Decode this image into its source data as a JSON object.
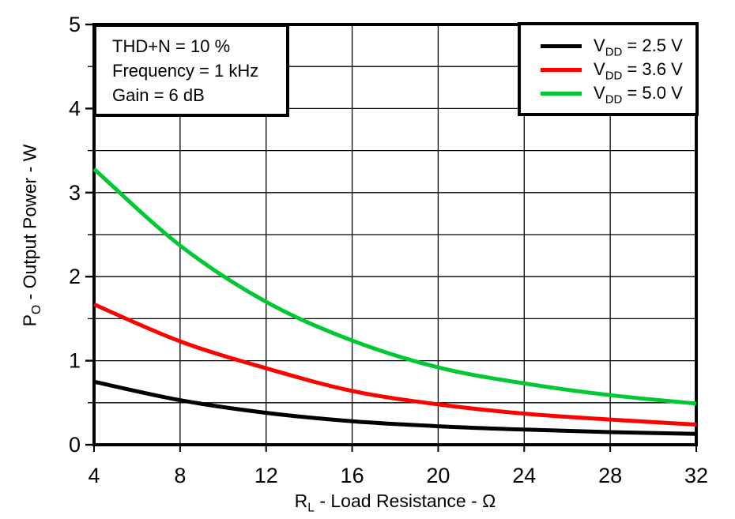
{
  "chart_data": {
    "type": "line",
    "x": [
      4,
      8,
      12,
      16,
      20,
      24,
      28,
      32
    ],
    "series": [
      {
        "name": "VDD = 2.5 V",
        "label_prefix": "V",
        "label_sub": "DD",
        "label_rest": " = 2.5 V",
        "color": "#000000",
        "values": [
          0.75,
          0.53,
          0.38,
          0.28,
          0.22,
          0.18,
          0.15,
          0.13
        ]
      },
      {
        "name": "VDD = 3.6 V",
        "label_prefix": "V",
        "label_sub": "DD",
        "label_rest": " = 3.6 V",
        "color": "#ff0000",
        "values": [
          1.67,
          1.23,
          0.91,
          0.64,
          0.48,
          0.37,
          0.3,
          0.24
        ]
      },
      {
        "name": "VDD = 5.0 V",
        "label_prefix": "V",
        "label_sub": "DD",
        "label_rest": " = 5.0 V",
        "color": "#00c832",
        "values": [
          3.28,
          2.37,
          1.7,
          1.24,
          0.92,
          0.73,
          0.59,
          0.49
        ]
      }
    ],
    "xlabel": {
      "prefix": "R",
      "sub": "L",
      "rest": " - Load Resistance - Ω"
    },
    "ylabel": {
      "prefix": "P",
      "sub": "O",
      "rest": " - Output Power - W"
    },
    "xlim": [
      4,
      32
    ],
    "ylim": [
      0,
      5
    ],
    "xticks": [
      4,
      8,
      12,
      16,
      20,
      24,
      28,
      32
    ],
    "yticks": [
      0,
      1,
      2,
      3,
      4,
      5
    ],
    "y_minor_step": 0.5,
    "grid": "on",
    "legend_position": "top-right",
    "annotation": {
      "lines": [
        "THD+N = 10 %",
        "Frequency = 1 kHz",
        "Gain = 6 dB"
      ]
    }
  }
}
